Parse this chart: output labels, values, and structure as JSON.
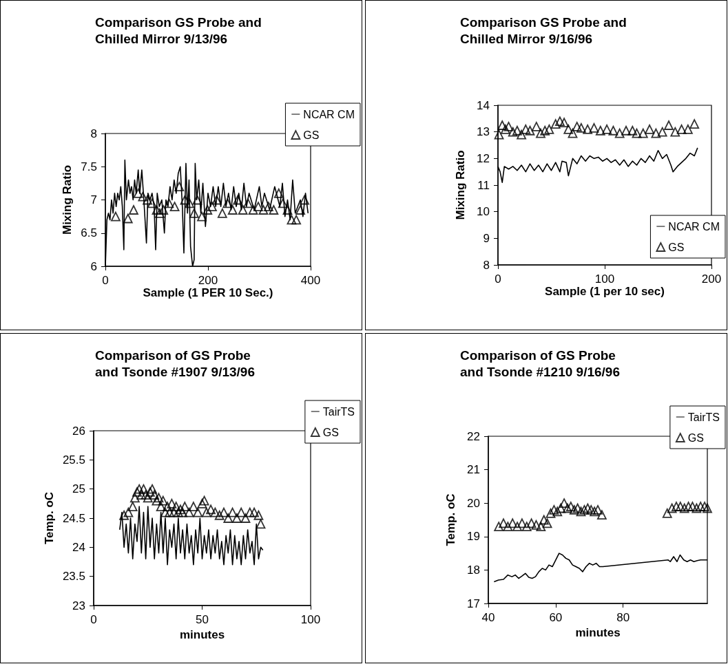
{
  "chart_data": [
    {
      "type": "line",
      "title": "Comparison GS Probe and Chilled Mirror 9/13/96",
      "xlabel": "Sample (1 PER 10 Sec.)",
      "ylabel": "Mixing Ratio",
      "xlim": [
        0,
        400
      ],
      "xticks": [
        0,
        200,
        400
      ],
      "ylim": [
        6,
        8
      ],
      "yticks": [
        6,
        6.5,
        7,
        7.5,
        8
      ],
      "legend": "top right",
      "series": [
        {
          "name": "NCAR CM",
          "type": "line",
          "color": "#000000",
          "x": [
            0,
            3,
            6,
            9,
            12,
            15,
            18,
            21,
            24,
            27,
            30,
            33,
            36,
            38,
            41,
            45,
            48,
            51,
            54,
            57,
            60,
            64,
            67,
            71,
            75,
            80,
            83,
            87,
            91,
            95,
            98,
            101,
            105,
            110,
            115,
            118,
            122,
            126,
            130,
            134,
            138,
            142,
            146,
            150,
            153,
            157,
            160,
            163,
            166,
            170,
            173,
            175,
            178,
            182,
            186,
            190,
            195,
            200,
            205,
            210,
            215,
            220,
            225,
            230,
            235,
            240,
            245,
            250,
            255,
            260,
            265,
            270,
            275,
            280,
            290,
            300,
            305,
            310,
            320,
            330,
            340,
            345,
            350,
            355,
            360,
            365,
            370,
            380,
            385,
            390,
            395
          ],
          "values": [
            6.0,
            6.7,
            6.8,
            6.7,
            7.0,
            6.8,
            7.1,
            6.9,
            7.1,
            7.0,
            7.2,
            6.9,
            6.25,
            7.6,
            7.0,
            7.3,
            7.1,
            7.2,
            7.0,
            7.3,
            7.1,
            7.45,
            7.1,
            7.45,
            7.0,
            6.35,
            7.1,
            7.0,
            7.1,
            6.9,
            6.25,
            7.1,
            6.9,
            7.0,
            6.5,
            7.0,
            6.9,
            7.2,
            7.0,
            7.3,
            7.1,
            7.4,
            7.5,
            6.9,
            6.2,
            7.55,
            6.8,
            7.3,
            6.3,
            6.0,
            6.1,
            7.55,
            7.0,
            7.3,
            6.8,
            7.25,
            6.6,
            7.1,
            6.9,
            7.2,
            6.9,
            7.2,
            6.9,
            7.25,
            6.9,
            7.1,
            6.85,
            7.2,
            6.9,
            7.1,
            6.85,
            7.25,
            6.9,
            7.1,
            6.85,
            7.2,
            6.9,
            7.1,
            6.85,
            7.2,
            6.9,
            7.25,
            6.75,
            7.0,
            6.7,
            7.3,
            6.8,
            7.0,
            6.75,
            7.1,
            6.8
          ]
        },
        {
          "name": "GS",
          "type": "scatter",
          "marker": "triangle",
          "color": "#000000",
          "x": [
            20,
            44,
            55,
            64,
            73,
            82,
            91,
            100,
            106,
            113,
            124,
            135,
            144,
            155,
            164,
            173,
            179,
            188,
            199,
            208,
            217,
            228,
            238,
            248,
            258,
            268,
            278,
            288,
            298,
            308,
            318,
            328,
            338,
            346,
            355,
            363,
            372,
            380,
            388
          ],
          "values": [
            6.75,
            6.72,
            6.85,
            7.1,
            7.05,
            7.0,
            6.95,
            6.85,
            6.8,
            6.85,
            6.95,
            6.9,
            7.2,
            7.0,
            6.95,
            6.8,
            7.0,
            6.75,
            6.85,
            6.9,
            7.0,
            6.8,
            6.95,
            6.85,
            7.0,
            6.85,
            6.95,
            6.85,
            6.9,
            6.85,
            6.9,
            6.85,
            7.1,
            6.95,
            6.85,
            6.7,
            6.7,
            6.85,
            7.0
          ]
        }
      ]
    },
    {
      "type": "line",
      "title": "Comparison GS Probe and Chilled Mirror 9/16/96",
      "xlabel": "Sample (1 per 10 sec)",
      "ylabel": "Mixing Ratio",
      "xlim": [
        0,
        200
      ],
      "xticks": [
        0,
        100,
        200
      ],
      "ylim": [
        8,
        14
      ],
      "yticks": [
        8,
        9,
        10,
        11,
        12,
        13,
        14
      ],
      "legend": "bottom right",
      "series": [
        {
          "name": "NCAR CM",
          "type": "line",
          "color": "#000000",
          "x": [
            0,
            2,
            4,
            6,
            10,
            14,
            18,
            22,
            26,
            30,
            34,
            38,
            42,
            46,
            50,
            54,
            58,
            60,
            64,
            66,
            70,
            74,
            78,
            82,
            86,
            90,
            94,
            98,
            102,
            106,
            110,
            114,
            118,
            122,
            126,
            130,
            134,
            138,
            142,
            146,
            150,
            154,
            158,
            162,
            164,
            168,
            172,
            176,
            180,
            184,
            187
          ],
          "values": [
            11.7,
            11.5,
            11.1,
            11.7,
            11.6,
            11.7,
            11.55,
            11.75,
            11.5,
            11.8,
            11.55,
            11.75,
            11.5,
            11.8,
            11.55,
            11.85,
            11.5,
            11.9,
            11.85,
            11.35,
            12.0,
            11.8,
            12.1,
            11.9,
            12.1,
            12.0,
            12.05,
            11.9,
            12.0,
            11.85,
            11.95,
            11.75,
            11.95,
            11.7,
            11.9,
            11.75,
            12.0,
            11.85,
            12.1,
            11.9,
            12.3,
            12.0,
            12.15,
            11.75,
            11.5,
            11.7,
            11.85,
            12.0,
            12.2,
            12.1,
            12.4
          ]
        },
        {
          "name": "GS",
          "type": "scatter",
          "marker": "triangle",
          "color": "#000000",
          "x": [
            1,
            4,
            7,
            10,
            14,
            18,
            22,
            26,
            30,
            36,
            40,
            44,
            48,
            54,
            58,
            62,
            66,
            70,
            74,
            78,
            84,
            90,
            96,
            102,
            108,
            114,
            120,
            126,
            130,
            136,
            142,
            148,
            154,
            160,
            166,
            172,
            178,
            184
          ],
          "values": [
            12.9,
            13.25,
            13.1,
            13.2,
            13.0,
            13.05,
            12.9,
            13.1,
            13.05,
            13.2,
            12.95,
            13.05,
            13.1,
            13.3,
            13.4,
            13.35,
            13.1,
            12.95,
            13.2,
            13.15,
            13.1,
            13.15,
            13.05,
            13.1,
            13.05,
            12.95,
            13.05,
            13.05,
            12.95,
            12.95,
            13.1,
            12.95,
            13.0,
            13.25,
            13.0,
            13.1,
            13.1,
            13.3
          ]
        }
      ]
    },
    {
      "type": "line",
      "title": "Comparison of GS Probe and Tsonde #1907 9/13/96",
      "xlabel": "minutes",
      "ylabel": "Temp. oC",
      "xlim": [
        0,
        100
      ],
      "xticks": [
        0,
        50,
        100
      ],
      "ylim": [
        23,
        26
      ],
      "yticks": [
        23,
        23.5,
        24,
        24.5,
        25,
        25.5,
        26
      ],
      "legend": "top right",
      "series": [
        {
          "name": "TairTS",
          "type": "line",
          "color": "#000000",
          "x": [
            12,
            13,
            14,
            15,
            16,
            17,
            18,
            19,
            20,
            21,
            22,
            23,
            24,
            25,
            26,
            27,
            28,
            29,
            30,
            31,
            32,
            33,
            34,
            35,
            36,
            37,
            38,
            39,
            40,
            41,
            42,
            43,
            44,
            45,
            46,
            47,
            48,
            49,
            50,
            51,
            52,
            53,
            54,
            55,
            56,
            57,
            58,
            59,
            60,
            61,
            62,
            63,
            64,
            65,
            66,
            67,
            68,
            69,
            70,
            71,
            72,
            73,
            74,
            75,
            76,
            77,
            78
          ],
          "values": [
            24.3,
            24.6,
            24.0,
            24.4,
            23.9,
            24.5,
            23.8,
            24.4,
            24.1,
            24.7,
            23.9,
            24.6,
            23.8,
            24.7,
            24.0,
            24.5,
            23.8,
            24.4,
            23.9,
            24.6,
            23.9,
            24.5,
            23.7,
            24.3,
            24.0,
            24.4,
            23.8,
            24.5,
            23.9,
            24.3,
            23.8,
            24.4,
            23.9,
            24.2,
            23.7,
            24.3,
            23.9,
            24.5,
            23.8,
            24.2,
            23.9,
            24.3,
            23.8,
            24.2,
            23.9,
            24.3,
            23.8,
            24.1,
            23.7,
            24.2,
            23.9,
            24.3,
            23.7,
            24.2,
            23.8,
            24.1,
            23.7,
            24.2,
            23.8,
            24.3,
            23.9,
            24.1,
            23.7,
            24.4,
            23.8,
            24.0,
            23.95
          ]
        },
        {
          "name": "GS",
          "type": "scatter",
          "marker": "triangle",
          "color": "#000000",
          "x": [
            14,
            16,
            18,
            19,
            20,
            21,
            22,
            23,
            24,
            25,
            26,
            27,
            28,
            29,
            30,
            31,
            32,
            33,
            34,
            35,
            36,
            37,
            38,
            39,
            40,
            41,
            42,
            44,
            46,
            48,
            50,
            51,
            52,
            54,
            56,
            58,
            60,
            62,
            64,
            66,
            68,
            70,
            72,
            74,
            76,
            77
          ],
          "values": [
            24.55,
            24.6,
            24.7,
            24.85,
            24.95,
            25.0,
            24.9,
            25.0,
            24.9,
            24.85,
            24.95,
            25.0,
            24.9,
            24.8,
            24.85,
            24.7,
            24.8,
            24.6,
            24.7,
            24.6,
            24.75,
            24.6,
            24.7,
            24.6,
            24.65,
            24.6,
            24.7,
            24.6,
            24.7,
            24.6,
            24.75,
            24.8,
            24.6,
            24.65,
            24.6,
            24.55,
            24.6,
            24.5,
            24.6,
            24.5,
            24.6,
            24.5,
            24.6,
            24.6,
            24.55,
            24.4
          ]
        }
      ]
    },
    {
      "type": "line",
      "title": "Comparison of GS Probe and Tsonde #1210 9/16/96",
      "xlabel": "minutes",
      "ylabel": "Temp. oC",
      "xlim": [
        40,
        105
      ],
      "xticks": [
        40,
        60,
        80
      ],
      "ylim": [
        17,
        22
      ],
      "yticks": [
        17,
        18,
        19,
        20,
        21,
        22
      ],
      "legend": "top right",
      "series": [
        {
          "name": "TairTS",
          "type": "line",
          "color": "#000000",
          "x": [
            41.7,
            43,
            44.5,
            45.8,
            47,
            48,
            49,
            50,
            51,
            52,
            53,
            54,
            55,
            56,
            57,
            58,
            59,
            60,
            61,
            62,
            63,
            64,
            65,
            66,
            67,
            68,
            69,
            70,
            71,
            72,
            73,
            74,
            93.4,
            94,
            95,
            96,
            96.9,
            98,
            99,
            100,
            101,
            102,
            103,
            105
          ],
          "values": [
            17.65,
            17.7,
            17.72,
            17.85,
            17.8,
            17.85,
            17.75,
            17.82,
            17.9,
            17.78,
            17.75,
            17.8,
            17.95,
            18.05,
            18.0,
            18.15,
            18.1,
            18.3,
            18.5,
            18.45,
            18.35,
            18.3,
            18.15,
            18.1,
            18.05,
            17.95,
            18.1,
            18.2,
            18.15,
            18.2,
            18.1,
            18.1,
            18.3,
            18.25,
            18.4,
            18.25,
            18.45,
            18.3,
            18.25,
            18.3,
            18.25,
            18.28,
            18.3,
            18.3
          ]
        },
        {
          "name": "GS",
          "type": "scatter",
          "marker": "triangle",
          "color": "#000000",
          "x": [
            43.1,
            44.5,
            45.8,
            47.2,
            48.6,
            50,
            51.4,
            52.8,
            54.2,
            55.6,
            56.5,
            57.5,
            58.5,
            59.5,
            60.5,
            61.5,
            62.5,
            63.5,
            64.5,
            65.5,
            66.5,
            67.5,
            68.5,
            69.5,
            70.5,
            71.5,
            72.5,
            73.7,
            93.1,
            94.5,
            95.8,
            97,
            98.2,
            99.4,
            100.6,
            101.8,
            103,
            104.2,
            105
          ],
          "values": [
            19.3,
            19.4,
            19.3,
            19.4,
            19.3,
            19.4,
            19.3,
            19.4,
            19.35,
            19.3,
            19.5,
            19.4,
            19.7,
            19.8,
            19.75,
            19.85,
            20.0,
            19.85,
            19.9,
            19.8,
            19.85,
            19.75,
            19.8,
            19.85,
            19.8,
            19.75,
            19.8,
            19.65,
            19.7,
            19.85,
            19.9,
            19.9,
            19.85,
            19.9,
            19.9,
            19.85,
            19.9,
            19.9,
            19.85
          ]
        }
      ]
    }
  ]
}
